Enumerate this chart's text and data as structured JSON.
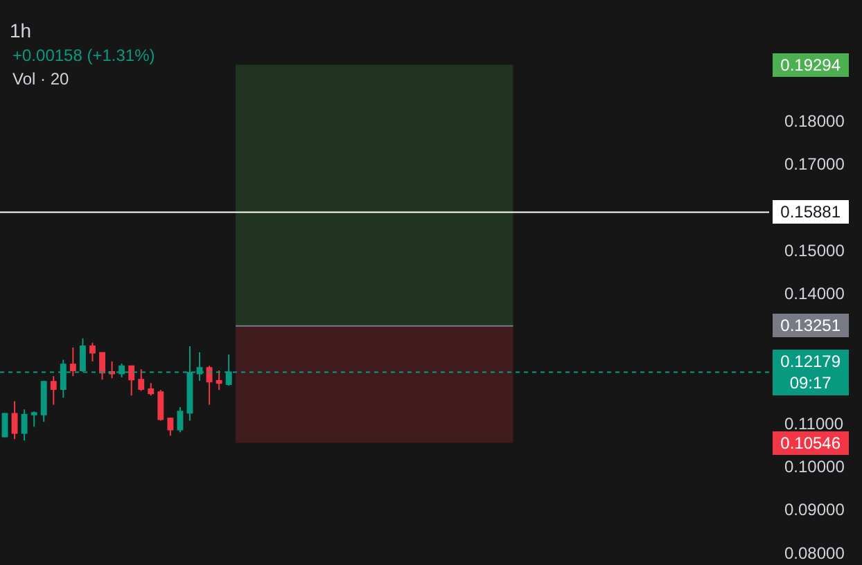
{
  "chart_data": {
    "type": "candlestick",
    "title": "1h",
    "subtitle": "+0.00158 (+1.31%)",
    "annotations": [
      "Vol · 20"
    ],
    "categories": [
      null,
      null,
      null,
      null,
      null,
      null,
      null,
      null,
      null,
      null,
      null,
      null,
      null,
      null,
      null,
      null,
      null,
      null,
      null,
      null,
      null,
      null,
      null,
      null,
      null,
      null,
      null,
      null,
      null,
      null,
      null,
      null,
      null,
      null,
      null,
      null,
      null,
      null,
      null,
      null,
      null,
      null,
      null,
      null,
      null,
      null,
      null,
      null,
      null,
      null,
      null,
      null,
      null,
      null,
      null,
      null,
      null,
      null,
      null,
      null,
      null,
      null,
      null,
      null,
      null,
      null,
      null,
      null,
      null,
      null,
      null,
      null,
      null,
      null,
      null,
      null,
      null,
      null,
      null
    ],
    "ohlc": [
      [
        0.1069,
        0.1124,
        0.1067,
        0.1122
      ],
      [
        0.1122,
        0.1151,
        0.1063,
        0.1077
      ],
      [
        0.1077,
        0.1132,
        0.106,
        0.112
      ],
      [
        0.112,
        0.1127,
        0.1092,
        0.1124
      ],
      [
        0.112,
        0.1198,
        0.1103,
        0.1196
      ],
      [
        0.1196,
        0.1209,
        0.1143,
        0.1179
      ],
      [
        0.1179,
        0.1247,
        0.1159,
        0.1236
      ],
      [
        0.1236,
        0.1275,
        0.1209,
        0.1222
      ],
      [
        0.1222,
        0.1296,
        0.1219,
        0.1278
      ],
      [
        0.1278,
        0.1286,
        0.1243,
        0.1263
      ],
      [
        0.1263,
        0.1264,
        0.1201,
        0.1217
      ],
      [
        0.1219,
        0.1243,
        0.1204,
        0.1215
      ],
      [
        0.1215,
        0.1238,
        0.1206,
        0.1232
      ],
      [
        0.1232,
        0.1233,
        0.1164,
        0.1201
      ],
      [
        0.1201,
        0.1225,
        0.1175,
        0.1179
      ],
      [
        0.1179,
        0.1193,
        0.1164,
        0.1169
      ],
      [
        0.1172,
        0.1177,
        0.1106,
        0.1109
      ],
      [
        0.1111,
        0.1113,
        0.1071,
        0.1085
      ],
      [
        0.1085,
        0.1137,
        0.1079,
        0.1127
      ],
      [
        0.1124,
        0.1278,
        0.1106,
        0.1217
      ],
      [
        0.1215,
        0.1264,
        0.1198,
        0.1228
      ],
      [
        0.1228,
        0.1233,
        0.1143,
        0.1196
      ],
      [
        0.1198,
        0.1222,
        0.1177,
        0.1193
      ],
      [
        0.119,
        0.1259,
        0.1187,
        0.1218
      ],
      null,
      null,
      null,
      null,
      null,
      null,
      null,
      null,
      null,
      null,
      null,
      null,
      null,
      null,
      null,
      null,
      null,
      null,
      null,
      null,
      null,
      null,
      null,
      null,
      null,
      null,
      null,
      null,
      null,
      null,
      null,
      null,
      null,
      null,
      null,
      null,
      null,
      null,
      null,
      null,
      null,
      null,
      null,
      null,
      null,
      null,
      null,
      null,
      null,
      null,
      null,
      null,
      null,
      null,
      null
    ],
    "colors": [
      "#089981",
      "#f23645",
      "#089981",
      "#089981",
      "#089981",
      "#f23645",
      "#089981",
      "#f23645",
      "#089981",
      "#f23645",
      "#f23645",
      "#f23645",
      "#089981",
      "#f23645",
      "#f23645",
      "#f23645",
      "#f23645",
      "#f23645",
      "#089981",
      "#089981",
      "#089981",
      "#f23645",
      "#f23645",
      "#089981",
      null,
      null,
      null,
      null,
      null,
      null,
      null,
      null,
      null,
      null,
      null,
      null,
      null,
      null,
      null,
      null,
      null,
      null,
      null,
      null,
      null,
      null,
      null,
      null,
      null,
      null,
      null,
      null,
      null,
      null,
      null,
      null,
      null,
      null,
      null,
      null,
      null,
      null,
      null,
      null,
      null,
      null,
      null,
      null,
      null,
      null,
      null,
      null,
      null,
      null,
      null,
      null,
      null,
      null,
      null
    ],
    "ylim": [
      0.0772,
      0.2079
    ],
    "yticks": [
      {
        "value": 0.08,
        "label": "0.08000"
      },
      {
        "value": 0.09,
        "label": "0.09000"
      },
      {
        "value": 0.1,
        "label": "0.10000"
      },
      0.10546,
      {
        "value": 0.11,
        "label": "0.11000"
      },
      0.13251,
      {
        "value": 0.14,
        "label": "0.14000"
      },
      {
        "value": 0.15,
        "label": "0.15000"
      },
      {
        "value": 0.17,
        "label": "0.17000"
      },
      {
        "value": 0.18,
        "label": "0.18000"
      },
      0.19294
    ],
    "tick_labels": "y",
    "ref_lines": [
      {
        "axis": "y",
        "value": 0.15881,
        "label": "0.15881",
        "color": "#ffffff"
      },
      {
        "axis": "y",
        "value": 0.13251,
        "color": "#787b86"
      },
      {
        "axis": "y",
        "value": 0.12179,
        "label": "0.12179\n09:17",
        "color": "#089981",
        "line_style": "dotted"
      }
    ],
    "bands": [
      {
        "axis": "y",
        "from": 0.13251,
        "to": 0.19294,
        "color": "#4caf50"
      },
      {
        "axis": "y",
        "from": 0.10546,
        "to": 0.13251,
        "color": "#f23645"
      }
    ]
  }
}
